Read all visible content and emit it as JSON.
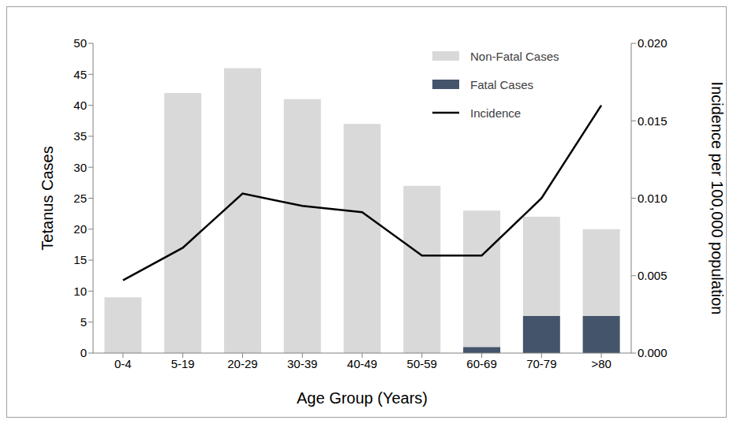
{
  "chart_data": {
    "type": "bar",
    "stacked": true,
    "categories": [
      "0-4",
      "5-19",
      "20-29",
      "30-39",
      "40-49",
      "50-59",
      "60-69",
      "70-79",
      ">80"
    ],
    "series": [
      {
        "name": "Non-Fatal Cases",
        "type": "bar",
        "color": "#d9d9d9",
        "values": [
          9,
          42,
          46,
          41,
          37,
          27,
          22,
          16,
          14
        ]
      },
      {
        "name": "Fatal Cases",
        "type": "bar",
        "color": "#44546a",
        "values": [
          0,
          0,
          0,
          0,
          0,
          0,
          1,
          6,
          6
        ]
      },
      {
        "name": "Incidence",
        "type": "line",
        "color": "#000000",
        "axis": "y2",
        "values": [
          0.0047,
          0.0068,
          0.0103,
          0.0095,
          0.0091,
          0.0063,
          0.0063,
          0.01,
          0.016
        ]
      }
    ],
    "x_label": "Age Group (Years)",
    "y_label": "Tetanus Cases",
    "y2_label": "Incidence per 100,000 population",
    "ylim": [
      0,
      50
    ],
    "yticks": [
      0,
      5,
      10,
      15,
      20,
      25,
      30,
      35,
      40,
      45,
      50
    ],
    "y2lim": [
      0,
      0.02
    ],
    "y2ticks": [
      {
        "value": 0,
        "label": "0.000"
      },
      {
        "value": 0.005,
        "label": "0.005"
      },
      {
        "value": 0.01,
        "label": "0.010"
      },
      {
        "value": 0.015,
        "label": "0.015"
      },
      {
        "value": 0.02,
        "label": "0.020"
      }
    ],
    "legend": "upper right",
    "grid": false
  }
}
